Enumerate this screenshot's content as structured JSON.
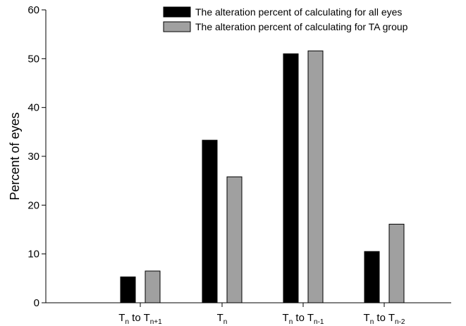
{
  "chart_data": {
    "type": "bar",
    "categories": [
      {
        "main": "T",
        "sub": "n",
        "mid": " to T",
        "sub2": "n+1"
      },
      {
        "main": "T",
        "sub": "n",
        "mid": "",
        "sub2": ""
      },
      {
        "main": "T",
        "sub": "n",
        "mid": " to T",
        "sub2": "n-1"
      },
      {
        "main": "T",
        "sub": "n",
        "mid": " to T",
        "sub2": "n-2"
      }
    ],
    "series": [
      {
        "name": "The  alteration percent of calculating for all eyes",
        "color": "#000000",
        "values": [
          5.3,
          33.3,
          51.0,
          10.5
        ]
      },
      {
        "name": "The  alteration percent of calculating for TA group",
        "color": "#a0a0a0",
        "values": [
          6.5,
          25.8,
          51.6,
          16.1
        ]
      }
    ],
    "ylabel": "Percent  of eyes",
    "xlabel": "",
    "ylim": [
      0,
      60
    ],
    "yticks": [
      "0",
      "10",
      "20",
      "30",
      "40",
      "50",
      "60"
    ],
    "legend_position": "top-right",
    "grid": false
  }
}
